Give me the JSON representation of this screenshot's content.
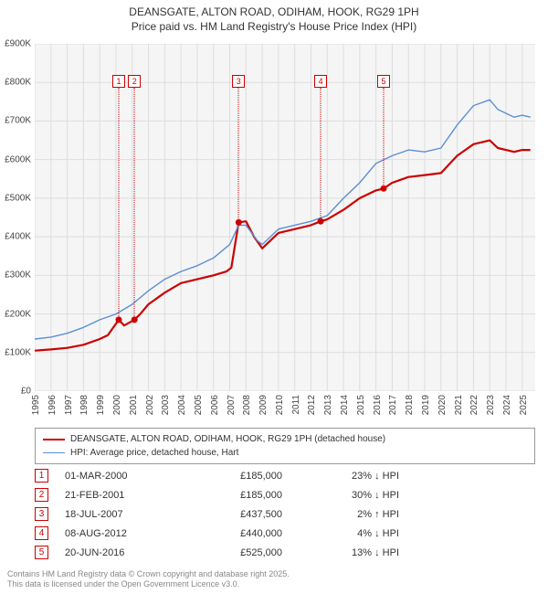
{
  "title": {
    "line1": "DEANSGATE, ALTON ROAD, ODIHAM, HOOK, RG29 1PH",
    "line2": "Price paid vs. HM Land Registry's House Price Index (HPI)"
  },
  "chart": {
    "type": "line",
    "background_color": "#f5f5f5",
    "grid_color": "#dddddd",
    "y": {
      "min": 0,
      "max": 900000,
      "step": 100000,
      "prefix": "£",
      "suffix": "K",
      "divisor": 1000
    },
    "x": {
      "min": 1995,
      "max": 2025.8,
      "ticks": [
        1995,
        1996,
        1997,
        1998,
        1999,
        2000,
        2001,
        2002,
        2003,
        2004,
        2005,
        2006,
        2007,
        2008,
        2009,
        2010,
        2011,
        2012,
        2013,
        2014,
        2015,
        2016,
        2017,
        2018,
        2019,
        2020,
        2021,
        2022,
        2023,
        2024,
        2025
      ]
    },
    "series": [
      {
        "name": "DEANSGATE, ALTON ROAD, ODIHAM, HOOK, RG29 1PH (detached house)",
        "color": "#cc0000",
        "width": 2.2,
        "points": [
          [
            1995,
            105000
          ],
          [
            1996,
            108000
          ],
          [
            1997,
            112000
          ],
          [
            1998,
            120000
          ],
          [
            1999,
            135000
          ],
          [
            1999.5,
            145000
          ],
          [
            2000.17,
            185000
          ],
          [
            2000.5,
            170000
          ],
          [
            2001.14,
            185000
          ],
          [
            2001.5,
            200000
          ],
          [
            2002,
            225000
          ],
          [
            2003,
            255000
          ],
          [
            2004,
            280000
          ],
          [
            2005,
            290000
          ],
          [
            2006,
            300000
          ],
          [
            2006.8,
            310000
          ],
          [
            2007.1,
            320000
          ],
          [
            2007.55,
            437500
          ],
          [
            2008,
            440000
          ],
          [
            2008.5,
            400000
          ],
          [
            2009,
            370000
          ],
          [
            2009.5,
            390000
          ],
          [
            2010,
            410000
          ],
          [
            2011,
            420000
          ],
          [
            2012,
            430000
          ],
          [
            2012.6,
            440000
          ],
          [
            2013,
            445000
          ],
          [
            2014,
            470000
          ],
          [
            2015,
            500000
          ],
          [
            2016,
            520000
          ],
          [
            2016.47,
            525000
          ],
          [
            2017,
            540000
          ],
          [
            2018,
            555000
          ],
          [
            2019,
            560000
          ],
          [
            2020,
            565000
          ],
          [
            2021,
            610000
          ],
          [
            2022,
            640000
          ],
          [
            2023,
            650000
          ],
          [
            2023.5,
            630000
          ],
          [
            2024,
            625000
          ],
          [
            2024.5,
            620000
          ],
          [
            2025,
            625000
          ],
          [
            2025.5,
            625000
          ]
        ],
        "sale_points": [
          [
            2000.17,
            185000
          ],
          [
            2001.14,
            185000
          ],
          [
            2007.55,
            437500
          ],
          [
            2012.6,
            440000
          ],
          [
            2016.47,
            525000
          ]
        ]
      },
      {
        "name": "HPI: Average price, detached house, Hart",
        "color": "#5b8fd6",
        "width": 1.4,
        "points": [
          [
            1995,
            135000
          ],
          [
            1996,
            140000
          ],
          [
            1997,
            150000
          ],
          [
            1998,
            165000
          ],
          [
            1999,
            185000
          ],
          [
            2000,
            200000
          ],
          [
            2001,
            225000
          ],
          [
            2002,
            260000
          ],
          [
            2003,
            290000
          ],
          [
            2004,
            310000
          ],
          [
            2005,
            325000
          ],
          [
            2006,
            345000
          ],
          [
            2007,
            380000
          ],
          [
            2007.55,
            430000
          ],
          [
            2008,
            430000
          ],
          [
            2008.7,
            390000
          ],
          [
            2009,
            380000
          ],
          [
            2010,
            420000
          ],
          [
            2011,
            430000
          ],
          [
            2012,
            440000
          ],
          [
            2013,
            455000
          ],
          [
            2014,
            500000
          ],
          [
            2015,
            540000
          ],
          [
            2016,
            590000
          ],
          [
            2017,
            610000
          ],
          [
            2018,
            625000
          ],
          [
            2019,
            620000
          ],
          [
            2020,
            630000
          ],
          [
            2021,
            690000
          ],
          [
            2022,
            740000
          ],
          [
            2023,
            755000
          ],
          [
            2023.5,
            730000
          ],
          [
            2024,
            720000
          ],
          [
            2024.5,
            710000
          ],
          [
            2025,
            715000
          ],
          [
            2025.5,
            710000
          ]
        ]
      }
    ],
    "markers": [
      {
        "n": "1",
        "x": 2000.17,
        "dot_y": 185000
      },
      {
        "n": "2",
        "x": 2001.14,
        "dot_y": 185000
      },
      {
        "n": "3",
        "x": 2007.55,
        "dot_y": 437500
      },
      {
        "n": "4",
        "x": 2012.6,
        "dot_y": 440000
      },
      {
        "n": "5",
        "x": 2016.47,
        "dot_y": 525000
      }
    ],
    "marker_box_y_value": 820000
  },
  "legend": {
    "items": [
      {
        "label": "DEANSGATE, ALTON ROAD, ODIHAM, HOOK, RG29 1PH (detached house)",
        "color": "#cc0000",
        "width": 2.2
      },
      {
        "label": "HPI: Average price, detached house, Hart",
        "color": "#5b8fd6",
        "width": 1.4
      }
    ]
  },
  "sales": [
    {
      "n": "1",
      "date": "01-MAR-2000",
      "price": "£185,000",
      "diff": "23% ↓ HPI"
    },
    {
      "n": "2",
      "date": "21-FEB-2001",
      "price": "£185,000",
      "diff": "30% ↓ HPI"
    },
    {
      "n": "3",
      "date": "18-JUL-2007",
      "price": "£437,500",
      "diff": "2% ↑ HPI"
    },
    {
      "n": "4",
      "date": "08-AUG-2012",
      "price": "£440,000",
      "diff": "4% ↓ HPI"
    },
    {
      "n": "5",
      "date": "20-JUN-2016",
      "price": "£525,000",
      "diff": "13% ↓ HPI"
    }
  ],
  "footer": {
    "line1": "Contains HM Land Registry data © Crown copyright and database right 2025.",
    "line2": "This data is licensed under the Open Government Licence v3.0."
  }
}
